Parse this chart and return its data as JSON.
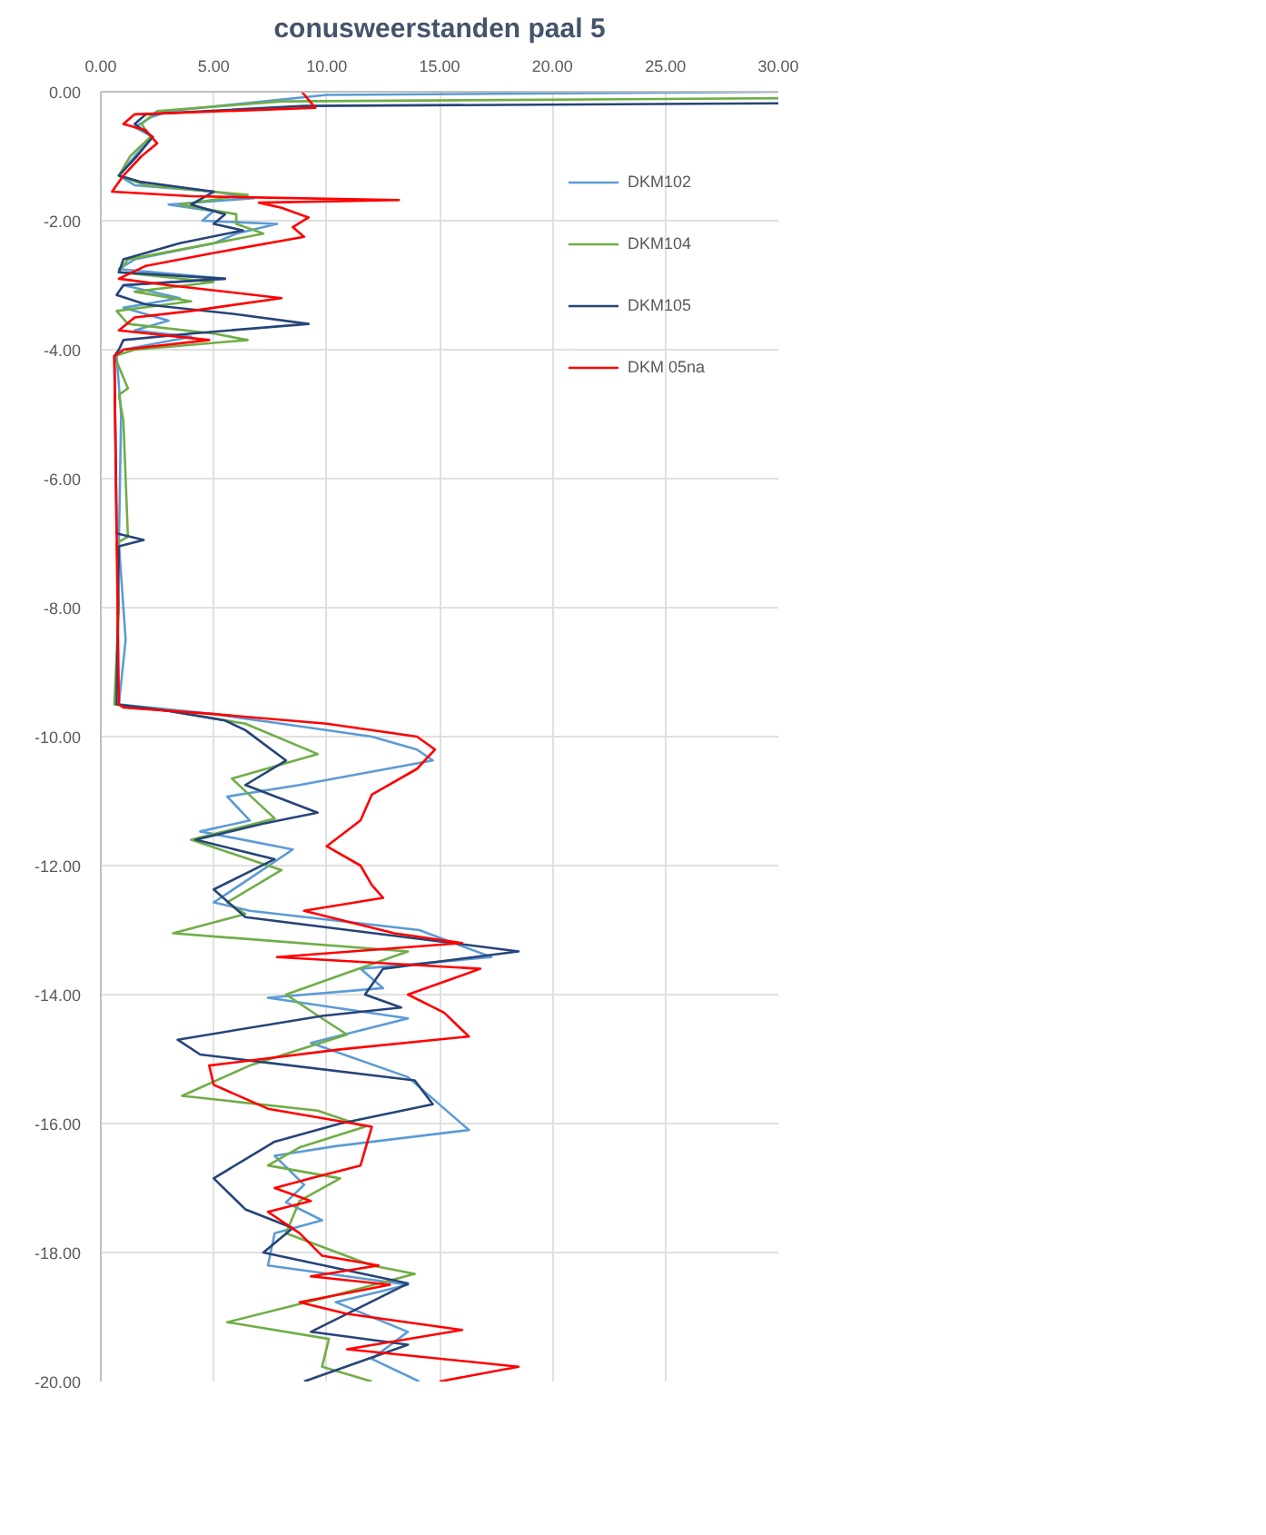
{
  "chart_data": {
    "type": "line",
    "title": "conusweerstanden paal 5",
    "xlim": [
      0,
      30
    ],
    "ylim": [
      -20,
      0
    ],
    "xticks": [
      {
        "value": 0,
        "label": "0.00"
      },
      {
        "value": 5,
        "label": "5.00"
      },
      {
        "value": 10,
        "label": "10.00"
      },
      {
        "value": 15,
        "label": "15.00"
      },
      {
        "value": 20,
        "label": "20.00"
      },
      {
        "value": 25,
        "label": "25.00"
      },
      {
        "value": 30,
        "label": "30.00"
      }
    ],
    "yticks": [
      {
        "value": 0,
        "label": "0.00"
      },
      {
        "value": -2,
        "label": "-2.00"
      },
      {
        "value": -4,
        "label": "-4.00"
      },
      {
        "value": -6,
        "label": "-6.00"
      },
      {
        "value": -8,
        "label": "-8.00"
      },
      {
        "value": -10,
        "label": "-10.00"
      },
      {
        "value": -12,
        "label": "-12.00"
      },
      {
        "value": -14,
        "label": "-14.00"
      },
      {
        "value": -16,
        "label": "-16.00"
      },
      {
        "value": -18,
        "label": "-18.00"
      },
      {
        "value": -20,
        "label": "-20.00"
      }
    ],
    "grid": true,
    "legend": "top right",
    "marker": "none",
    "line_style": "solid",
    "series": [
      {
        "name": "DKM102",
        "color": "#5b9bd5",
        "x": [
          30,
          10,
          3,
          2.2,
          1.5,
          2.3,
          1.5,
          0.8,
          1.5,
          5,
          6.8,
          3,
          5,
          4.5,
          7.8,
          6,
          5,
          1.5,
          0.8,
          5.5,
          1.0,
          3.5,
          1.0,
          3,
          1.5,
          4,
          1.0,
          0.7,
          0.9,
          0.8,
          1.1,
          0.8,
          5,
          8,
          12,
          14,
          14.7,
          8.8,
          5.6,
          6.6,
          4.4,
          8.5,
          6.6,
          5,
          6.6,
          14.1,
          17.3,
          11.5,
          12.5,
          7.4,
          13.6,
          9.3,
          13.6,
          16.3,
          10.4,
          7.7,
          9,
          8.2,
          9.8,
          7.7,
          7.4,
          13.6,
          10.4,
          13.6,
          12,
          14.1
        ],
        "values": [
          0,
          -0.05,
          -0.3,
          -0.4,
          -0.55,
          -0.7,
          -1.0,
          -1.3,
          -1.45,
          -1.55,
          -1.65,
          -1.75,
          -1.85,
          -2.0,
          -2.05,
          -2.2,
          -2.35,
          -2.6,
          -2.75,
          -2.9,
          -3.0,
          -3.2,
          -3.35,
          -3.55,
          -3.7,
          -3.8,
          -4.0,
          -4.1,
          -5,
          -7,
          -8.5,
          -9.5,
          -9.65,
          -9.8,
          -10.0,
          -10.2,
          -10.37,
          -10.75,
          -10.93,
          -11.3,
          -11.47,
          -11.75,
          -12.2,
          -12.57,
          -12.7,
          -13.0,
          -13.42,
          -13.6,
          -13.9,
          -14.05,
          -14.37,
          -14.75,
          -15.28,
          -16.1,
          -16.35,
          -16.5,
          -16.95,
          -17.22,
          -17.5,
          -17.7,
          -18.2,
          -18.5,
          -18.77,
          -19.23,
          -19.65,
          -20
        ]
      },
      {
        "name": "DKM104",
        "color": "#70ad47",
        "x": [
          30,
          8,
          2.5,
          1.8,
          2.2,
          1.3,
          0.8,
          2,
          6.5,
          3.5,
          6,
          6,
          7.2,
          5,
          1.2,
          0.8,
          5,
          1.5,
          4,
          0.7,
          1.2,
          5,
          6.5,
          1.5,
          0.6,
          1.2,
          0.8,
          1.0,
          1.2,
          0.7,
          0.8,
          0.6,
          3,
          6.4,
          9.6,
          5.8,
          7.7,
          4,
          8,
          5.6,
          6.4,
          3.2,
          13.6,
          10.6,
          8.2,
          9.8,
          10.9,
          6.6,
          3.6,
          9.6,
          11.7,
          8.8,
          7.4,
          10.6,
          8.8,
          8.2,
          12,
          13.9,
          10.4,
          5.6,
          10.1,
          9.8,
          12
        ],
        "values": [
          -0.1,
          -0.15,
          -0.3,
          -0.5,
          -0.7,
          -1.0,
          -1.3,
          -1.45,
          -1.6,
          -1.75,
          -1.9,
          -2.05,
          -2.2,
          -2.35,
          -2.6,
          -2.8,
          -2.95,
          -3.1,
          -3.25,
          -3.4,
          -3.6,
          -3.75,
          -3.85,
          -4.0,
          -4.1,
          -4.6,
          -4.7,
          -5.1,
          -6.9,
          -7.0,
          -8,
          -9.5,
          -9.6,
          -9.8,
          -10.27,
          -10.65,
          -11.27,
          -11.6,
          -12.07,
          -12.57,
          -12.75,
          -13.05,
          -13.33,
          -13.7,
          -14.0,
          -14.37,
          -14.62,
          -15.1,
          -15.57,
          -15.8,
          -16.05,
          -16.37,
          -16.65,
          -16.85,
          -17.2,
          -17.7,
          -18.2,
          -18.33,
          -18.66,
          -19.08,
          -19.34,
          -19.77,
          -20
        ]
      },
      {
        "name": "DKM105",
        "color": "#264478",
        "x": [
          30,
          9,
          2.0,
          1.5,
          2.3,
          1.6,
          0.8,
          1.8,
          5,
          4,
          5.5,
          5,
          6.3,
          3.5,
          1,
          0.8,
          5.5,
          1.0,
          0.7,
          2,
          6,
          9.2,
          4,
          1,
          0.8,
          0.6,
          0.7,
          1.9,
          0.8,
          0.7,
          3,
          5.5,
          6.4,
          8.2,
          6.4,
          9.6,
          7.2,
          4.2,
          7.7,
          5,
          6.4,
          18.5,
          12.5,
          11.7,
          13.3,
          9.8,
          3.4,
          4.4,
          13.9,
          14.7,
          10.6,
          7.7,
          5,
          6.4,
          8.5,
          7.2,
          13.6,
          9.3,
          13.6,
          9
        ],
        "values": [
          -0.18,
          -0.22,
          -0.35,
          -0.5,
          -0.7,
          -1.0,
          -1.3,
          -1.4,
          -1.55,
          -1.75,
          -1.9,
          -2.05,
          -2.15,
          -2.35,
          -2.6,
          -2.8,
          -2.9,
          -3.0,
          -3.15,
          -3.3,
          -3.45,
          -3.6,
          -3.75,
          -3.85,
          -4.0,
          -4.1,
          -6.85,
          -6.95,
          -7.05,
          -9.5,
          -9.6,
          -9.75,
          -9.9,
          -10.37,
          -10.75,
          -11.18,
          -11.35,
          -11.6,
          -11.9,
          -12.37,
          -12.8,
          -13.33,
          -13.6,
          -14.0,
          -14.2,
          -14.33,
          -14.7,
          -14.93,
          -15.33,
          -15.7,
          -16.0,
          -16.28,
          -16.85,
          -17.33,
          -17.62,
          -18.0,
          -18.48,
          -19.23,
          -19.43,
          -20
        ]
      },
      {
        "name": "DKM 05na",
        "color": "#ff0000",
        "x": [
          8.9,
          9.5,
          1.5,
          1.0,
          2.0,
          2.5,
          1.8,
          1.0,
          0.5,
          4,
          13.2,
          7,
          8,
          9.2,
          8.5,
          9,
          5,
          2,
          0.8,
          3,
          8.0,
          4,
          1.5,
          0.8,
          4.8,
          1.0,
          0.6,
          0.8,
          1,
          5,
          10,
          14,
          14.8,
          14,
          12,
          11.5,
          10,
          11.5,
          12,
          12.5,
          9,
          13,
          16,
          7.8,
          16.8,
          13.6,
          15.2,
          16.3,
          10.6,
          4.8,
          5,
          7.4,
          12,
          11.5,
          9.3,
          7.7,
          9.3,
          7.4,
          8.8,
          9.8,
          12.3,
          9.3,
          12.8,
          8.8,
          10.9,
          16,
          10.9,
          18.5,
          15
        ],
        "values": [
          0,
          -0.25,
          -0.35,
          -0.5,
          -0.6,
          -0.8,
          -1.0,
          -1.3,
          -1.55,
          -1.62,
          -1.68,
          -1.72,
          -1.8,
          -1.95,
          -2.1,
          -2.25,
          -2.5,
          -2.7,
          -2.9,
          -3.0,
          -3.2,
          -3.4,
          -3.5,
          -3.7,
          -3.85,
          -4.0,
          -4.1,
          -9.5,
          -9.55,
          -9.65,
          -9.8,
          -10.0,
          -10.2,
          -10.5,
          -10.9,
          -11.3,
          -11.7,
          -12.0,
          -12.3,
          -12.5,
          -12.7,
          -13.05,
          -13.2,
          -13.42,
          -13.6,
          -14.0,
          -14.28,
          -14.65,
          -14.85,
          -15.1,
          -15.4,
          -15.77,
          -16.05,
          -16.65,
          -16.85,
          -17.0,
          -17.2,
          -17.37,
          -17.7,
          -18.05,
          -18.2,
          -18.37,
          -18.5,
          -18.77,
          -18.95,
          -19.2,
          -19.5,
          -19.77,
          -20
        ]
      }
    ]
  }
}
